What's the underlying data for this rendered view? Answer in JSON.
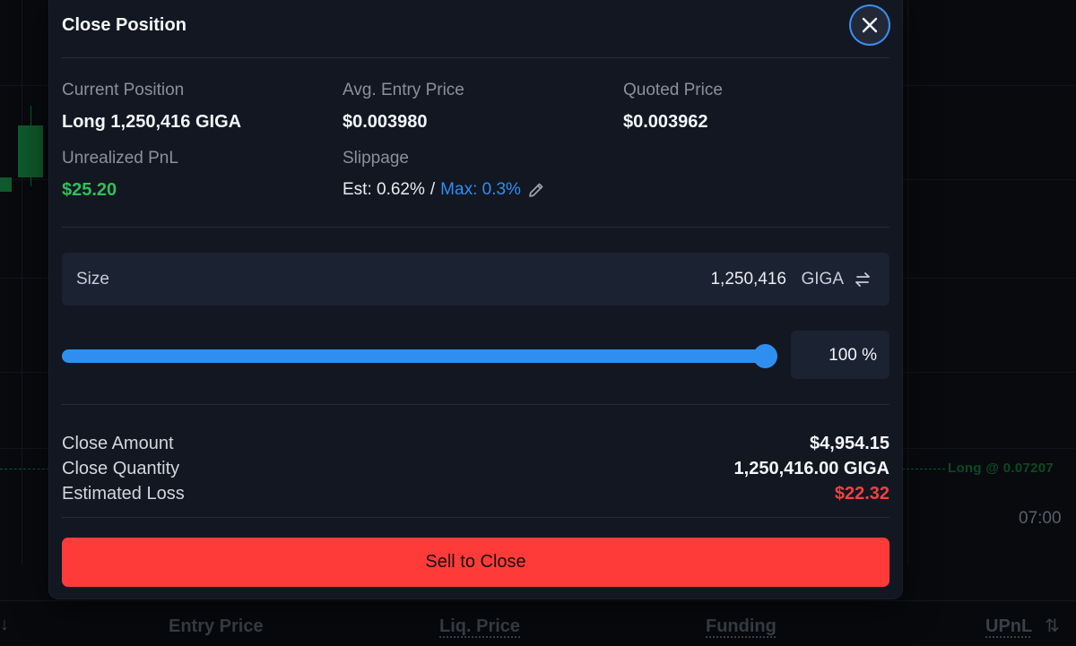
{
  "background": {
    "position_label": "Long @ 0.07207",
    "time_label": "07:00",
    "table_headers": [
      "Entry Price",
      "Liq. Price",
      "Funding",
      "UPnL"
    ],
    "sort_down_glyph": "↓",
    "sort_toggle_glyph": "⇅"
  },
  "modal": {
    "title": "Close Position",
    "close_icon": "close-icon",
    "stats": {
      "current_position_label": "Current Position",
      "current_position_value": "Long 1,250,416 GIGA",
      "avg_entry_label": "Avg. Entry Price",
      "avg_entry_value": "$0.003980",
      "quoted_price_label": "Quoted Price",
      "quoted_price_value": "$0.003962",
      "unrealized_pnl_label": "Unrealized PnL",
      "unrealized_pnl_value": "$25.20",
      "slippage_label": "Slippage",
      "slippage_est": "Est: 0.62%",
      "slippage_sep": "/",
      "slippage_max": "Max: 0.3%"
    },
    "size": {
      "label": "Size",
      "value": "1,250,416",
      "unit": "GIGA"
    },
    "slider": {
      "percent": 100,
      "display": "100 %"
    },
    "summary": {
      "close_amount_label": "Close Amount",
      "close_amount_value": "$4,954.15",
      "close_quantity_label": "Close Quantity",
      "close_quantity_value": "1,250,416.00 GIGA",
      "estimated_loss_label": "Estimated Loss",
      "estimated_loss_value": "$22.32"
    },
    "submit_label": "Sell to Close"
  },
  "colors": {
    "accent_blue": "#2f8ff0",
    "profit_green": "#2fbf5a",
    "loss_red": "#f0423f",
    "sell_button": "#ff3b3a",
    "modal_bg": "#131722"
  }
}
